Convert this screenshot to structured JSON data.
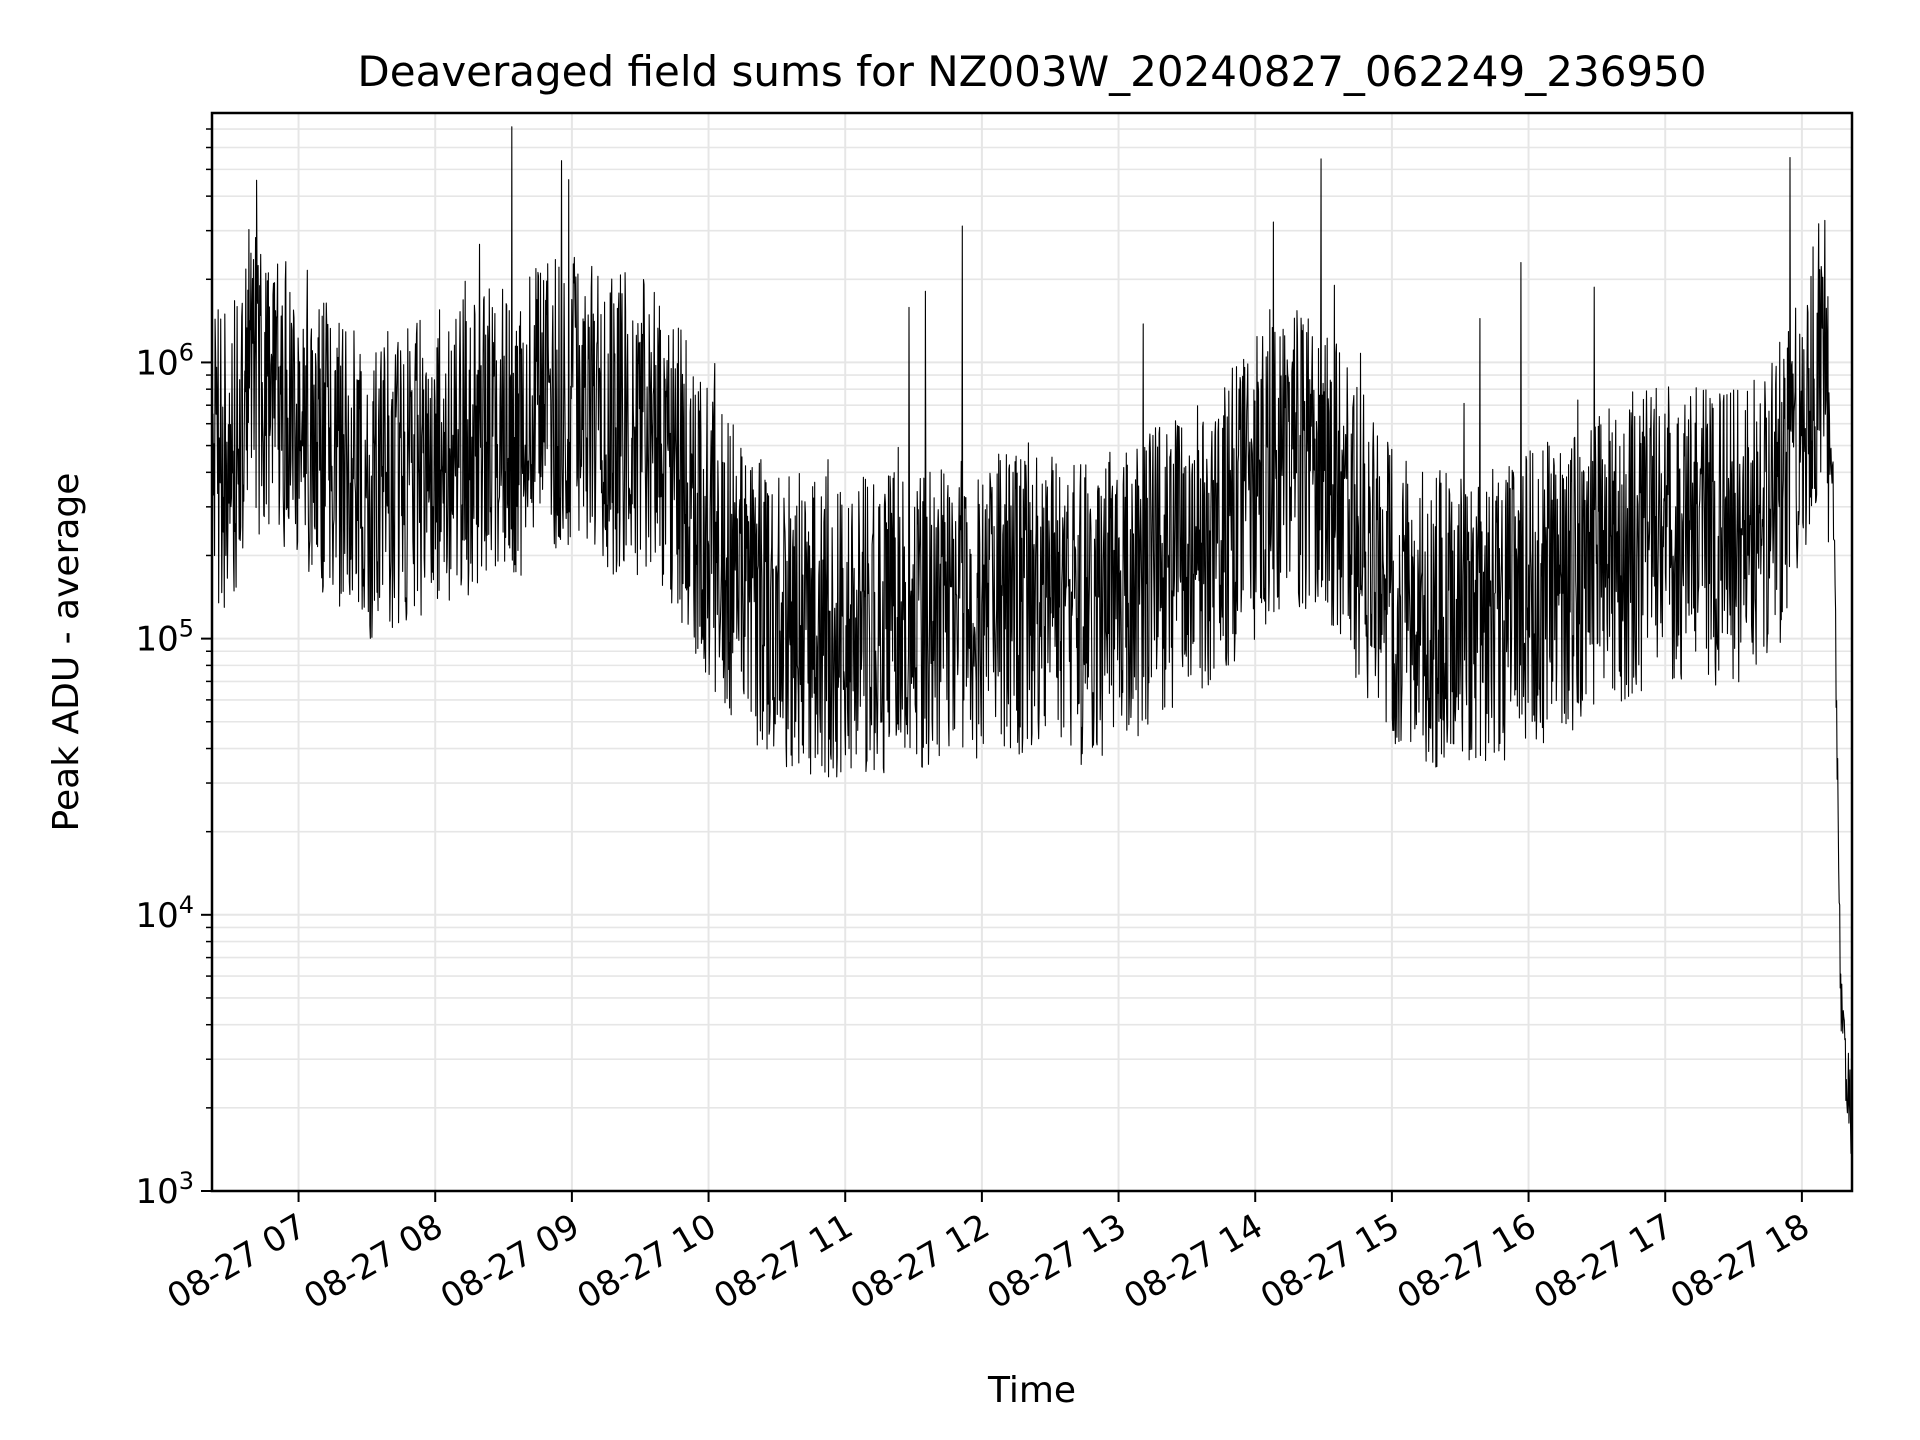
{
  "chart_data": {
    "type": "line",
    "title": "Deaveraged field sums for NZ003W_20240827_062249_236950",
    "xlabel": "Time",
    "ylabel": "Peak ADU - average",
    "y_scale": "log",
    "ylim": [
      1000,
      8000000
    ],
    "xlim": [
      "2024-08-27 06:22",
      "2024-08-27 18:22"
    ],
    "grid": true,
    "line_color": "#000000",
    "grid_color": "#e6e6e6",
    "x_ticks": [
      "08-27 07",
      "08-27 08",
      "08-27 09",
      "08-27 10",
      "08-27 11",
      "08-27 12",
      "08-27 13",
      "08-27 14",
      "08-27 15",
      "08-27 16",
      "08-27 17",
      "08-27 18"
    ],
    "y_tick_labels": [
      {
        "base": "10",
        "exp": "3"
      },
      {
        "base": "10",
        "exp": "4"
      },
      {
        "base": "10",
        "exp": "5"
      },
      {
        "base": "10",
        "exp": "6"
      }
    ],
    "series": [
      {
        "x": [
          "2024-08-27 06:22",
          "2024-08-27 06:30",
          "2024-08-27 06:38",
          "2024-08-27 06:45",
          "2024-08-27 07:00",
          "2024-08-27 07:15",
          "2024-08-27 07:30",
          "2024-08-27 07:45",
          "2024-08-27 08:00",
          "2024-08-27 08:15",
          "2024-08-27 08:30",
          "2024-08-27 08:45",
          "2024-08-27 09:00",
          "2024-08-27 09:15",
          "2024-08-27 09:30",
          "2024-08-27 09:45",
          "2024-08-27 10:00",
          "2024-08-27 10:15",
          "2024-08-27 10:30",
          "2024-08-27 10:45",
          "2024-08-27 11:00",
          "2024-08-27 11:15",
          "2024-08-27 11:30",
          "2024-08-27 11:45",
          "2024-08-27 12:00",
          "2024-08-27 12:15",
          "2024-08-27 12:30",
          "2024-08-27 12:45",
          "2024-08-27 13:00",
          "2024-08-27 13:15",
          "2024-08-27 13:30",
          "2024-08-27 13:45",
          "2024-08-27 14:00",
          "2024-08-27 14:15",
          "2024-08-27 14:30",
          "2024-08-27 14:45",
          "2024-08-27 15:00",
          "2024-08-27 15:15",
          "2024-08-27 15:30",
          "2024-08-27 15:45",
          "2024-08-27 16:00",
          "2024-08-27 16:15",
          "2024-08-27 16:30",
          "2024-08-27 16:45",
          "2024-08-27 17:00",
          "2024-08-27 17:15",
          "2024-08-27 17:30",
          "2024-08-27 17:45",
          "2024-08-27 18:00",
          "2024-08-27 18:05",
          "2024-08-27 18:10",
          "2024-08-27 18:14",
          "2024-08-27 18:17",
          "2024-08-27 18:20",
          "2024-08-27 18:22"
        ],
        "y": [
          500000,
          400000,
          900000,
          800000,
          700000,
          450000,
          350000,
          400000,
          450000,
          500000,
          550000,
          650000,
          700000,
          600000,
          600000,
          450000,
          250000,
          150000,
          120000,
          110000,
          110000,
          115000,
          120000,
          120000,
          130000,
          135000,
          140000,
          120000,
          140000,
          170000,
          200000,
          250000,
          350000,
          450000,
          400000,
          250000,
          150000,
          120000,
          110000,
          120000,
          140000,
          160000,
          180000,
          220000,
          250000,
          250000,
          230000,
          270000,
          500000,
          800000,
          1300000,
          300000,
          5000,
          2500,
          1700
        ]
      }
    ]
  }
}
